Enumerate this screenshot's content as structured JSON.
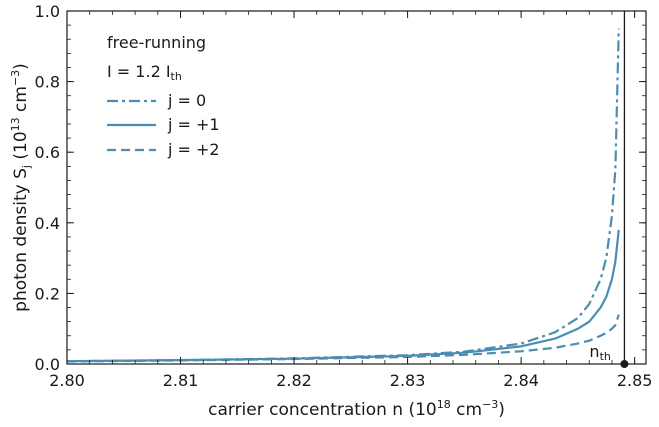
{
  "chart_data": {
    "type": "line",
    "xlabel": {
      "main": "carrier concentration n (10",
      "exp": "18",
      "mid": " cm",
      "exp2": "−3",
      "end": ")"
    },
    "ylabel": {
      "main": "photon density S",
      "sub": "j",
      "mid": " (10",
      "exp": "13",
      "mid2": " cm",
      "exp2": "−3",
      "end": ")"
    },
    "xlim": [
      2.8,
      2.851
    ],
    "ylim": [
      0.0,
      1.0
    ],
    "xticks": [
      2.8,
      2.81,
      2.82,
      2.83,
      2.84,
      2.85
    ],
    "xtick_labels": [
      "2.80",
      "2.81",
      "2.82",
      "2.83",
      "2.84",
      "2.85"
    ],
    "yticks": [
      0.0,
      0.2,
      0.4,
      0.6,
      0.8,
      1.0
    ],
    "ytick_labels": [
      "0.0",
      "0.2",
      "0.4",
      "0.6",
      "0.8",
      "1.0"
    ],
    "annotations": {
      "line1": "free-running",
      "line2_main": "I = 1.2 I",
      "line2_sub": "th"
    },
    "threshold": {
      "x": 2.8491,
      "label_main": "n",
      "label_sub": "th"
    },
    "legend_position": "upper-left",
    "series": [
      {
        "name": "j = 0",
        "style": "dashdot",
        "color": "#4a8db3",
        "x": [
          2.8,
          2.81,
          2.82,
          2.83,
          2.835,
          2.84,
          2.843,
          2.845,
          2.846,
          2.847,
          2.8475,
          2.848,
          2.8483,
          2.8486
        ],
        "y": [
          0.008,
          0.011,
          0.016,
          0.025,
          0.035,
          0.058,
          0.09,
          0.13,
          0.17,
          0.24,
          0.3,
          0.42,
          0.55,
          0.95
        ]
      },
      {
        "name": "j = +1",
        "style": "solid",
        "color": "#4a8db3",
        "x": [
          2.8,
          2.81,
          2.82,
          2.83,
          2.835,
          2.84,
          2.843,
          2.845,
          2.846,
          2.847,
          2.8475,
          2.848,
          2.8483,
          2.8486
        ],
        "y": [
          0.008,
          0.011,
          0.015,
          0.023,
          0.032,
          0.05,
          0.072,
          0.1,
          0.12,
          0.16,
          0.19,
          0.24,
          0.29,
          0.38
        ]
      },
      {
        "name": "j = +2",
        "style": "dashed",
        "color": "#4a8db3",
        "x": [
          2.8,
          2.81,
          2.82,
          2.83,
          2.835,
          2.84,
          2.843,
          2.845,
          2.846,
          2.847,
          2.8475,
          2.848,
          2.8483,
          2.8486
        ],
        "y": [
          0.007,
          0.01,
          0.014,
          0.02,
          0.026,
          0.036,
          0.046,
          0.058,
          0.066,
          0.08,
          0.088,
          0.1,
          0.11,
          0.14
        ]
      }
    ]
  }
}
